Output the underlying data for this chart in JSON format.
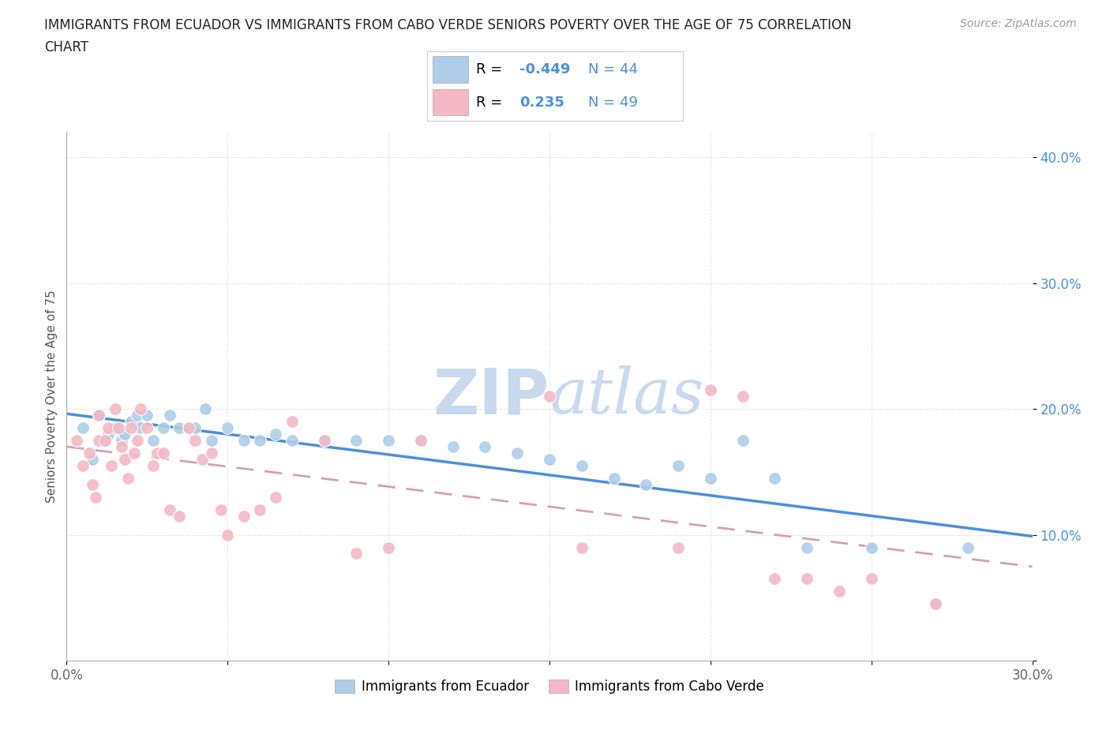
{
  "title_line1": "IMMIGRANTS FROM ECUADOR VS IMMIGRANTS FROM CABO VERDE SENIORS POVERTY OVER THE AGE OF 75 CORRELATION",
  "title_line2": "CHART",
  "source_text": "Source: ZipAtlas.com",
  "ylabel": "Seniors Poverty Over the Age of 75",
  "xlim": [
    0.0,
    0.3
  ],
  "ylim": [
    0.0,
    0.42
  ],
  "yticks": [
    0.0,
    0.1,
    0.2,
    0.3,
    0.4
  ],
  "ytick_labels": [
    "",
    "10.0%",
    "20.0%",
    "30.0%",
    "40.0%"
  ],
  "xticks": [
    0.0,
    0.05,
    0.1,
    0.15,
    0.2,
    0.25,
    0.3
  ],
  "xtick_labels": [
    "0.0%",
    "",
    "",
    "",
    "",
    "",
    "30.0%"
  ],
  "R_ecuador": -0.449,
  "N_ecuador": 44,
  "R_caboverde": 0.235,
  "N_caboverde": 49,
  "ecuador_color": "#aecde8",
  "caboverde_color": "#f4b8c4",
  "ecuador_line_color": "#4a90d9",
  "caboverde_line_color": "#d4a0b0",
  "tick_color": "#4a90d9",
  "watermark_color": "#c8d8ee",
  "ecuador_x": [
    0.005,
    0.008,
    0.01,
    0.012,
    0.013,
    0.015,
    0.017,
    0.018,
    0.02,
    0.022,
    0.023,
    0.025,
    0.027,
    0.03,
    0.032,
    0.035,
    0.038,
    0.04,
    0.043,
    0.045,
    0.05,
    0.055,
    0.06,
    0.065,
    0.07,
    0.08,
    0.09,
    0.1,
    0.11,
    0.12,
    0.13,
    0.14,
    0.15,
    0.16,
    0.17,
    0.18,
    0.19,
    0.2,
    0.21,
    0.22,
    0.23,
    0.25,
    0.27,
    0.28
  ],
  "ecuador_y": [
    0.185,
    0.16,
    0.195,
    0.175,
    0.18,
    0.185,
    0.175,
    0.18,
    0.19,
    0.195,
    0.185,
    0.195,
    0.175,
    0.185,
    0.195,
    0.185,
    0.185,
    0.185,
    0.2,
    0.175,
    0.185,
    0.175,
    0.175,
    0.18,
    0.175,
    0.175,
    0.175,
    0.175,
    0.175,
    0.17,
    0.17,
    0.165,
    0.16,
    0.155,
    0.145,
    0.14,
    0.155,
    0.145,
    0.175,
    0.145,
    0.09,
    0.09,
    0.045,
    0.09
  ],
  "caboverde_x": [
    0.003,
    0.005,
    0.007,
    0.008,
    0.009,
    0.01,
    0.01,
    0.012,
    0.013,
    0.014,
    0.015,
    0.016,
    0.017,
    0.018,
    0.019,
    0.02,
    0.021,
    0.022,
    0.023,
    0.025,
    0.027,
    0.028,
    0.03,
    0.032,
    0.035,
    0.038,
    0.04,
    0.042,
    0.045,
    0.048,
    0.05,
    0.055,
    0.06,
    0.065,
    0.07,
    0.08,
    0.09,
    0.1,
    0.11,
    0.15,
    0.16,
    0.19,
    0.2,
    0.21,
    0.22,
    0.23,
    0.24,
    0.25,
    0.27
  ],
  "caboverde_y": [
    0.175,
    0.155,
    0.165,
    0.14,
    0.13,
    0.195,
    0.175,
    0.175,
    0.185,
    0.155,
    0.2,
    0.185,
    0.17,
    0.16,
    0.145,
    0.185,
    0.165,
    0.175,
    0.2,
    0.185,
    0.155,
    0.165,
    0.165,
    0.12,
    0.115,
    0.185,
    0.175,
    0.16,
    0.165,
    0.12,
    0.1,
    0.115,
    0.12,
    0.13,
    0.19,
    0.175,
    0.085,
    0.09,
    0.175,
    0.21,
    0.09,
    0.09,
    0.215,
    0.21,
    0.065,
    0.065,
    0.055,
    0.065,
    0.045
  ]
}
